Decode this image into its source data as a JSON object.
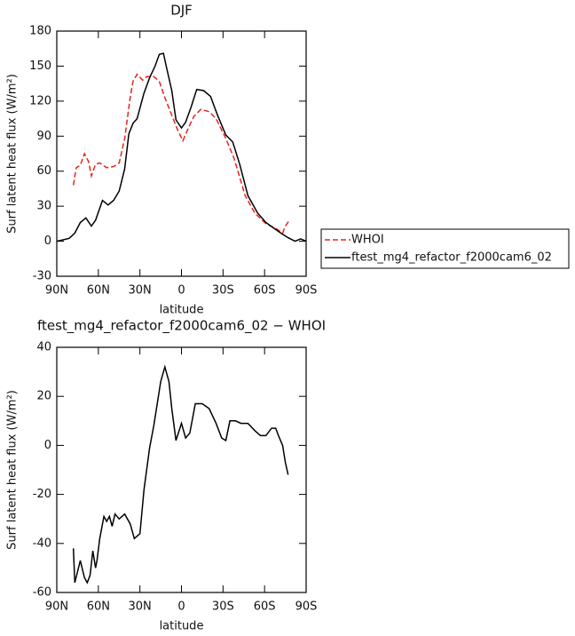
{
  "chart_data": [
    {
      "type": "line",
      "title": "DJF",
      "xlabel": "latitude",
      "ylabel": "Surf latent heat flux (W/m²)",
      "xlim": [
        90,
        -90
      ],
      "xticks": [
        {
          "value": 90,
          "label": "90N"
        },
        {
          "value": 60,
          "label": "60N"
        },
        {
          "value": 30,
          "label": "30N"
        },
        0,
        {
          "value": -30,
          "label": "30S"
        },
        {
          "value": -60,
          "label": "60S"
        },
        {
          "value": -90,
          "label": "90S"
        }
      ],
      "ylim": [
        -30,
        180
      ],
      "yticks": [
        -30,
        0,
        30,
        60,
        90,
        120,
        150,
        180
      ],
      "legend": "right",
      "series": [
        {
          "name": "WHOI",
          "color": "#e8231f",
          "line_style": "dashed",
          "x": [
            78,
            76,
            73,
            70,
            67,
            65,
            62,
            59,
            54,
            49,
            45,
            41,
            37,
            35,
            32,
            28,
            25,
            20,
            16,
            12,
            8,
            3,
            -1,
            -5,
            -9,
            -14,
            -20,
            -25,
            -32,
            -38,
            -46,
            -53,
            -61,
            -68,
            -73,
            -75,
            -78
          ],
          "values": [
            48,
            63,
            65,
            75,
            68,
            56,
            66,
            67,
            63,
            64,
            67,
            88,
            123,
            137,
            143,
            138,
            141,
            141,
            137,
            123,
            111,
            96,
            86,
            97,
            107,
            113,
            111,
            105,
            88,
            71,
            39,
            24,
            15,
            11,
            7,
            13,
            18
          ]
        },
        {
          "name": "ftest_mg4_refactor_f2000cam6_02",
          "color": "#000000",
          "line_style": "solid",
          "x": [
            90,
            81,
            77,
            73,
            69,
            65,
            62,
            57,
            53,
            49,
            45,
            41,
            38,
            35,
            32,
            27,
            23,
            19,
            16,
            13,
            11,
            7,
            4,
            0,
            -3,
            -7,
            -11,
            -16,
            -21,
            -26,
            -32,
            -37,
            -42,
            -48,
            -55,
            -61,
            -68,
            -73,
            -77,
            -82,
            -86,
            -90
          ],
          "values": [
            0,
            2.5,
            7,
            16,
            20,
            13,
            18,
            35,
            31,
            35,
            43,
            62,
            92,
            101,
            105,
            127,
            140,
            150,
            160,
            161,
            150,
            129,
            104,
            97,
            102,
            115,
            130,
            129,
            124,
            108,
            91,
            85,
            66,
            39,
            24,
            16,
            10,
            6,
            3,
            0,
            2,
            0
          ]
        }
      ]
    },
    {
      "type": "line",
      "title": "ftest_mg4_refactor_f2000cam6_02 − WHOI",
      "xlabel": "latitude",
      "ylabel": "Surf latent heat flux (W/m²)",
      "xlim": [
        90,
        -90
      ],
      "xticks": [
        {
          "value": 90,
          "label": "90N"
        },
        {
          "value": 60,
          "label": "60N"
        },
        {
          "value": 30,
          "label": "30N"
        },
        0,
        {
          "value": -30,
          "label": "30S"
        },
        {
          "value": -60,
          "label": "60S"
        },
        {
          "value": -90,
          "label": "90S"
        }
      ],
      "ylim": [
        -60,
        40
      ],
      "yticks": [
        -60,
        -40,
        -20,
        0,
        20,
        40
      ],
      "series": [
        {
          "color": "#000000",
          "line_style": "solid",
          "x": [
            78,
            77,
            73,
            70,
            68,
            66,
            64,
            62,
            61,
            59,
            56,
            54,
            52,
            50,
            48,
            45,
            41,
            37,
            34,
            30,
            27,
            23,
            20,
            15,
            12,
            9,
            7,
            4,
            0,
            -3,
            -6,
            -10,
            -15,
            -20,
            -25,
            -29,
            -32,
            -35,
            -39,
            -43,
            -48,
            -53,
            -57,
            -61,
            -65,
            -68,
            -70,
            -73,
            -75,
            -77
          ],
          "values": [
            -42,
            -56,
            -47,
            -54,
            -56,
            -53,
            -43,
            -50,
            -47,
            -38,
            -29,
            -31,
            -29,
            -33,
            -28,
            -30,
            -28,
            -32,
            -38,
            -36,
            -18,
            -1,
            8,
            26,
            32,
            26,
            15,
            2,
            9,
            3,
            5,
            17,
            17,
            15,
            9,
            3,
            2,
            10,
            10,
            9,
            9,
            6,
            4,
            4,
            7,
            7,
            4,
            0,
            -7,
            -12
          ]
        }
      ]
    }
  ]
}
